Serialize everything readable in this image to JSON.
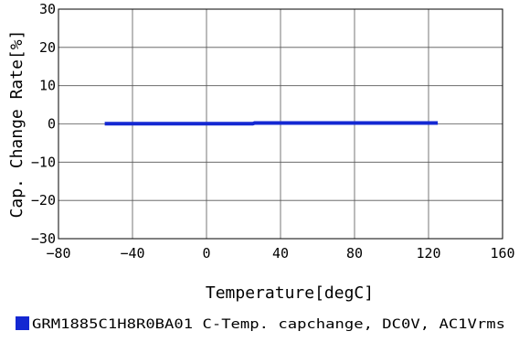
{
  "chart_data": {
    "type": "line",
    "xlabel": "Temperature[degC]",
    "ylabel": "Cap. Change Rate[%]",
    "xlim": [
      -80,
      160
    ],
    "ylim": [
      -30,
      30
    ],
    "x_ticks": [
      -80,
      -40,
      0,
      40,
      80,
      120,
      160
    ],
    "y_ticks": [
      -30,
      -20,
      -10,
      0,
      10,
      20,
      30
    ],
    "x_tick_labels": [
      "−80",
      "−40",
      "0",
      "40",
      "80",
      "120",
      "160"
    ],
    "y_tick_labels": [
      "−30",
      "−20",
      "−10",
      "0",
      "10",
      "20",
      "30"
    ],
    "grid": true,
    "legend_position": "bottom",
    "series": [
      {
        "name": "GRM1885C1H8R0BA01 C-Temp. capchange, DC0V, AC1Vrms",
        "color": "#1428d2",
        "x": [
          -55,
          -40,
          -20,
          0,
          25,
          26,
          40,
          60,
          80,
          100,
          125
        ],
        "y": [
          0.05,
          0.05,
          0.05,
          0.05,
          0.05,
          0.25,
          0.25,
          0.25,
          0.25,
          0.25,
          0.25
        ]
      }
    ]
  }
}
